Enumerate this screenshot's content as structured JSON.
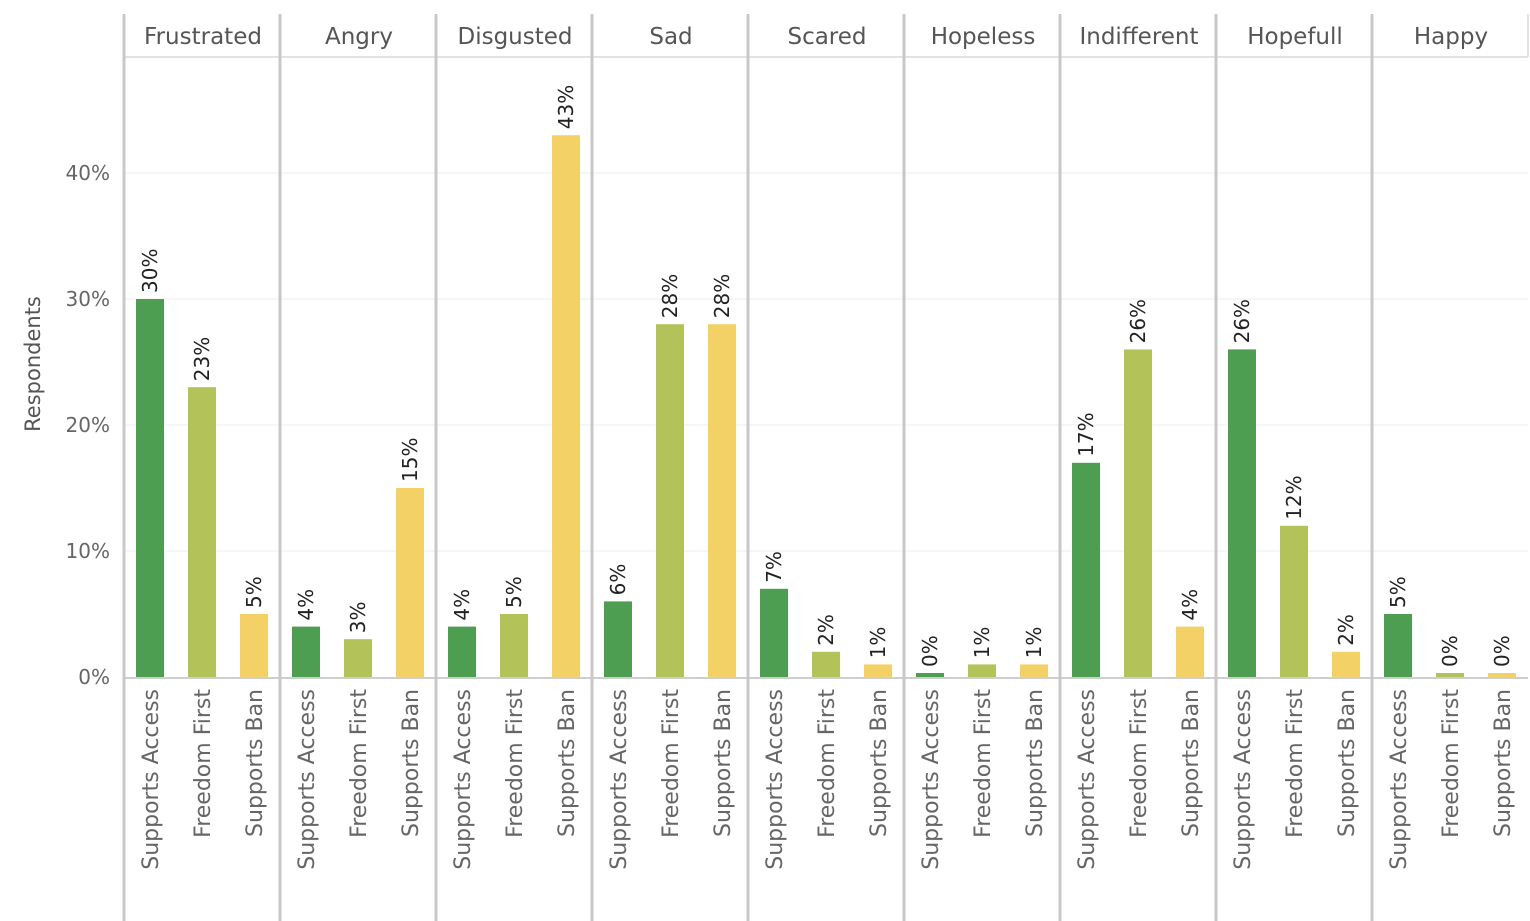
{
  "chart_data": {
    "type": "bar",
    "ylabel": "Respondents",
    "ylim": [
      0,
      48
    ],
    "yticks": [
      0,
      10,
      20,
      30,
      40
    ],
    "ytick_labels": [
      "0%",
      "10%",
      "20%",
      "30%",
      "40%"
    ],
    "grid": true,
    "categories": [
      "Supports Access",
      "Freedom First",
      "Supports Ban"
    ],
    "colors": {
      "Supports Access": "#4e9e52",
      "Freedom First": "#b3c35a",
      "Supports Ban": "#f3d166"
    },
    "panels": [
      {
        "name": "Frustrated",
        "values": [
          30,
          23,
          5
        ],
        "labels": [
          "30%",
          "23%",
          "5%"
        ]
      },
      {
        "name": "Angry",
        "values": [
          4,
          3,
          15
        ],
        "labels": [
          "4%",
          "3%",
          "15%"
        ]
      },
      {
        "name": "Disgusted",
        "values": [
          4,
          5,
          43
        ],
        "labels": [
          "4%",
          "5%",
          "43%"
        ]
      },
      {
        "name": "Sad",
        "values": [
          6,
          28,
          28
        ],
        "labels": [
          "6%",
          "28%",
          "28%"
        ]
      },
      {
        "name": "Scared",
        "values": [
          7,
          2,
          1
        ],
        "labels": [
          "7%",
          "2%",
          "1%"
        ]
      },
      {
        "name": "Hopeless",
        "values": [
          0,
          1,
          1
        ],
        "labels": [
          "0%",
          "1%",
          "1%"
        ]
      },
      {
        "name": "Indifferent",
        "values": [
          17,
          26,
          4
        ],
        "labels": [
          "17%",
          "26%",
          "4%"
        ]
      },
      {
        "name": "Hopefull",
        "values": [
          26,
          12,
          2
        ],
        "labels": [
          "26%",
          "12%",
          "2%"
        ]
      },
      {
        "name": "Happy",
        "values": [
          5,
          0,
          0
        ],
        "labels": [
          "5%",
          "0%",
          "0%"
        ]
      }
    ]
  }
}
